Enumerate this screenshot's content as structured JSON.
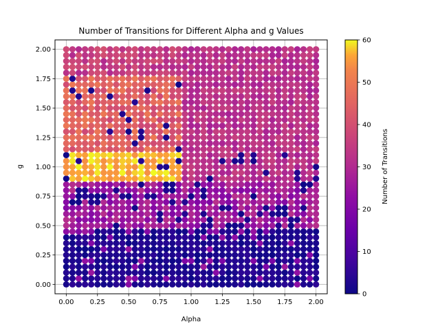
{
  "chart_data": {
    "type": "scatter",
    "title": "Number of Transitions for Different Alpha and g Values",
    "xlabel": "Alpha",
    "ylabel": "g",
    "xlim": [
      -0.09,
      2.09
    ],
    "ylim": [
      -0.08,
      2.08
    ],
    "xticks": [
      "0.00",
      "0.25",
      "0.50",
      "0.75",
      "1.00",
      "1.25",
      "1.50",
      "1.75",
      "2.00"
    ],
    "yticks": [
      "0.00",
      "0.25",
      "0.50",
      "0.75",
      "1.00",
      "1.25",
      "1.50",
      "1.75",
      "2.00"
    ],
    "grid": true,
    "colormap": "plasma",
    "colorbar": {
      "label": "Number of Transitions",
      "min": 0,
      "max": 60,
      "ticks": [
        "0",
        "10",
        "20",
        "30",
        "40",
        "50",
        "60"
      ]
    },
    "grid_points": {
      "alpha_start": 0,
      "alpha_end": 2,
      "alpha_steps": 41,
      "g_start": 0,
      "g_end": 2,
      "g_steps": 41
    },
    "pattern_summary": [
      {
        "g_range": [
          0.0,
          0.45
        ],
        "typical_transitions": 3,
        "note": "dark blue region (near 0)"
      },
      {
        "g_range": [
          0.5,
          0.85
        ],
        "typical_transitions": 25,
        "note": "magenta region with scattered zeros"
      },
      {
        "g_range": [
          0.9,
          1.1
        ],
        "alpha_range": [
          0.0,
          0.9
        ],
        "typical_transitions": 58,
        "note": "bright yellow band"
      },
      {
        "g_range": [
          1.1,
          1.75
        ],
        "alpha_range": [
          0.0,
          0.9
        ],
        "typical_transitions": 44,
        "note": "orange region"
      },
      {
        "g_range": [
          0.85,
          2.0
        ],
        "alpha_range": [
          0.9,
          2.0
        ],
        "typical_transitions": 32,
        "note": "pink-red region"
      }
    ]
  }
}
